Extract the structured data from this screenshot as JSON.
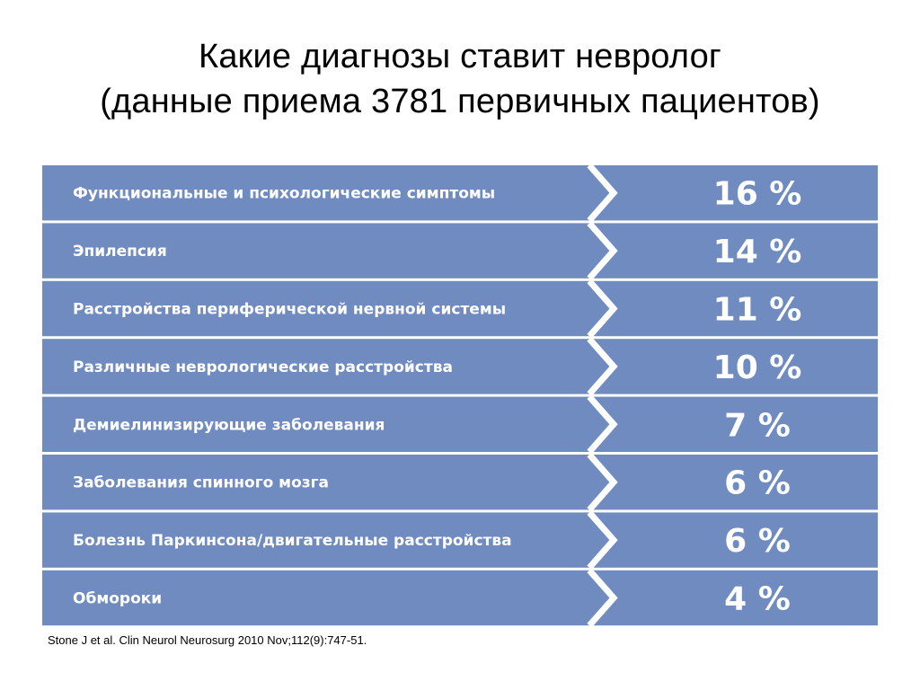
{
  "title": {
    "line1": "Какие диагнозы ставит невролог",
    "line2": "(данные приема 3781 первичных пациентов)"
  },
  "chart_data": {
    "type": "table",
    "title": "Какие диагнозы ставит невролог (данные приема 3781 первичных пациентов)",
    "categories": [
      "Функциональные и психологические симптомы",
      "Эпилепсия",
      "Расстройства периферической нервной системы",
      "Различные неврологические расстройства",
      "Демиелинизирующие заболевания",
      "Заболевания спинного мозга",
      "Болезнь Паркинсона/двигательные расстройства",
      "Обмороки"
    ],
    "values": [
      16,
      14,
      11,
      10,
      7,
      6,
      6,
      4
    ],
    "value_labels": [
      "16 %",
      "14 %",
      "11 %",
      "10 %",
      "7 %",
      "6 %",
      "6 %",
      "4 %"
    ],
    "unit": "%"
  },
  "source": "Stone J et al. Clin Neurol Neurosurg 2010 Nov;112(9):747-51.",
  "colors": {
    "row_fill": "#6f8bc0",
    "separator": "#ffffff",
    "text": "#ffffff",
    "background": "#ffffff"
  }
}
